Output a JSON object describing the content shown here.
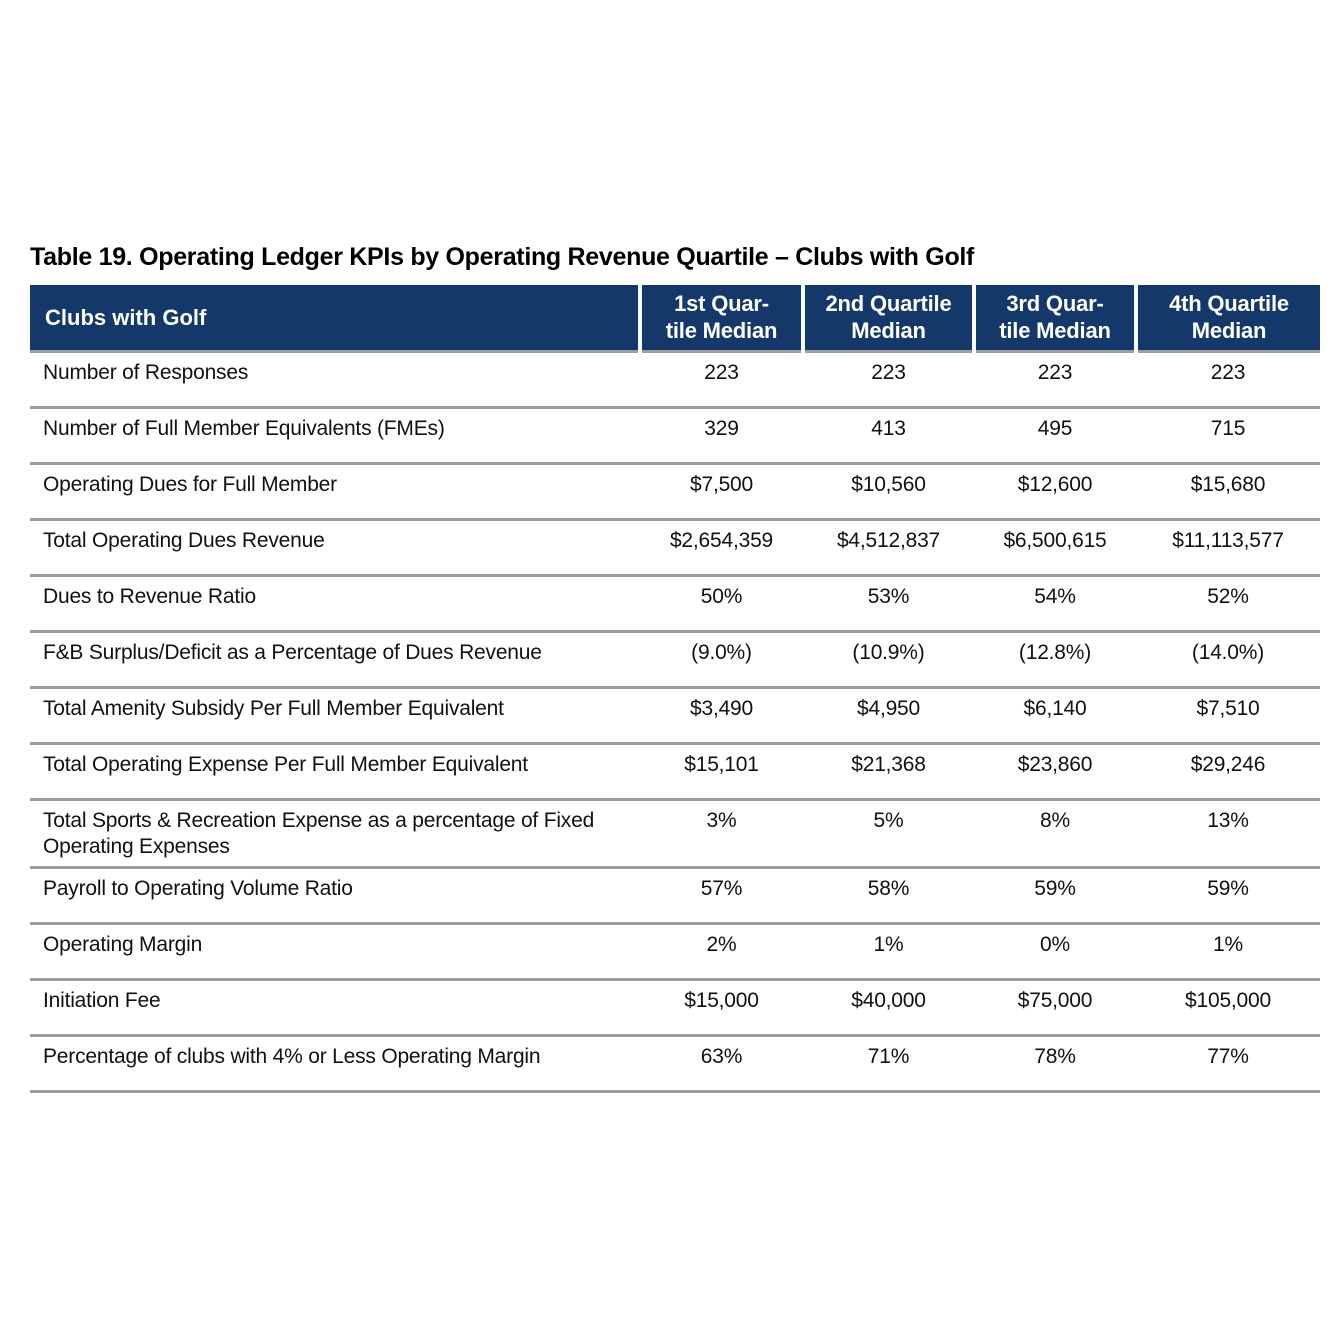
{
  "colors": {
    "page_bg": "#FFFFFF",
    "header_bg": "#14386A",
    "header_text": "#FFFFFF",
    "row_divider": "#9E9E9E",
    "body_text": "#111111"
  },
  "chart_data": {
    "type": "table",
    "title": "Table 19. Operating Ledger KPIs by Operating Revenue Quartile – Clubs with Golf",
    "header": {
      "label_col": "Clubs with Golf",
      "data_cols": [
        {
          "name": "1st Quartile Median",
          "line1": "1st Quar-",
          "line2": "tile Median"
        },
        {
          "name": "2nd Quartile Median",
          "line1": "2nd Quartile",
          "line2": "Median"
        },
        {
          "name": "3rd Quartile Median",
          "line1": "3rd Quar-",
          "line2": "tile Median"
        },
        {
          "name": "4th Quartile Median",
          "line1": "4th Quartile",
          "line2": "Median"
        }
      ]
    },
    "rows": [
      {
        "label": "Number of Responses",
        "values": [
          "223",
          "223",
          "223",
          "223"
        ]
      },
      {
        "label": "Number of Full Member Equivalents (FMEs)",
        "values": [
          "329",
          "413",
          "495",
          "715"
        ]
      },
      {
        "label": "Operating Dues for Full Member",
        "values": [
          "$7,500",
          "$10,560",
          "$12,600",
          "$15,680"
        ]
      },
      {
        "label": "Total Operating Dues Revenue",
        "values": [
          "$2,654,359",
          "$4,512,837",
          "$6,500,615",
          "$11,113,577"
        ]
      },
      {
        "label": "Dues to Revenue Ratio",
        "values": [
          "50%",
          "53%",
          "54%",
          "52%"
        ]
      },
      {
        "label": "F&B Surplus/Deficit as a Percentage of Dues Revenue",
        "values": [
          "(9.0%)",
          "(10.9%)",
          "(12.8%)",
          "(14.0%)"
        ]
      },
      {
        "label": "Total Amenity Subsidy Per Full Member Equivalent",
        "values": [
          "$3,490",
          "$4,950",
          "$6,140",
          "$7,510"
        ]
      },
      {
        "label": "Total Operating Expense Per Full Member Equivalent",
        "values": [
          "$15,101",
          "$21,368",
          "$23,860",
          "$29,246"
        ]
      },
      {
        "label": "Total Sports & Recreation Expense as a percentage of Fixed Operating Expenses",
        "values": [
          "3%",
          "5%",
          "8%",
          "13%"
        ]
      },
      {
        "label": "Payroll to Operating Volume Ratio",
        "values": [
          "57%",
          "58%",
          "59%",
          "59%"
        ]
      },
      {
        "label": "Operating Margin",
        "values": [
          "2%",
          "1%",
          "0%",
          "1%"
        ]
      },
      {
        "label": "Initiation Fee",
        "values": [
          "$15,000",
          "$40,000",
          "$75,000",
          "$105,000"
        ]
      },
      {
        "label": "Percentage of clubs with 4% or Less Operating Margin",
        "values": [
          "63%",
          "71%",
          "78%",
          "77%"
        ]
      }
    ]
  }
}
